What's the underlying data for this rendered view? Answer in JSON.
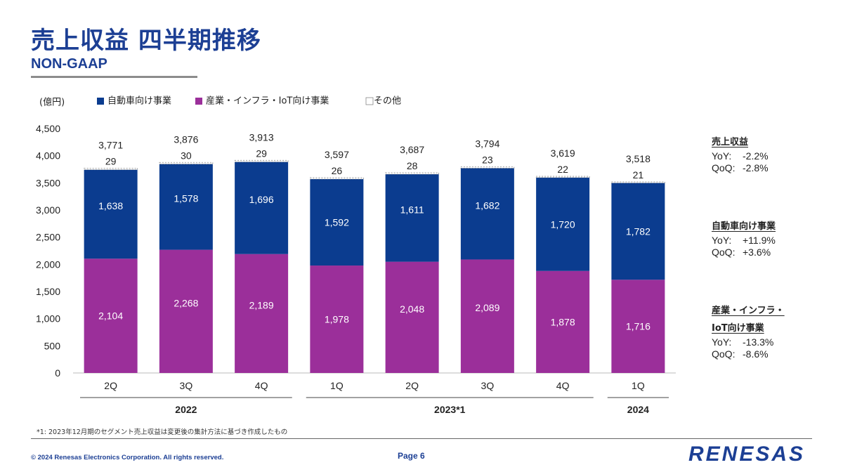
{
  "slide": {
    "title": "売上収益 四半期推移",
    "subtitle": "NON-GAAP",
    "footnote": "*1: 2023年12月期のセグメント売上収益は変更後の集計方法に基づき作成したもの",
    "copyright": "© 2024 Renesas Electronics Corporation. All rights reserved.",
    "page": "Page 6",
    "logo": "RENESAS"
  },
  "side": {
    "total": {
      "title": "売上収益",
      "yoy_key": "YoY:",
      "yoy": "-2.2%",
      "qoq_key": "QoQ:",
      "qoq": "-2.8%"
    },
    "auto": {
      "title": "自動車向け事業",
      "yoy_key": "YoY:",
      "yoy": "+11.9%",
      "qoq_key": "QoQ:",
      "qoq": "+3.6%"
    },
    "iiot": {
      "title_line1": "産業・インフラ・",
      "title_line2": "IoT向け事業",
      "yoy_key": "YoY:",
      "yoy": "-13.3%",
      "qoq_key": "QoQ:",
      "qoq": "-8.6%"
    }
  },
  "chart_data": {
    "type": "bar",
    "stacked": true,
    "unit_label": "(億円)",
    "categories": [
      "2Q",
      "3Q",
      "4Q",
      "1Q",
      "2Q",
      "3Q",
      "4Q",
      "1Q"
    ],
    "year_groups": [
      {
        "label": "2022",
        "count": 3
      },
      {
        "label": "2023*1",
        "count": 4
      },
      {
        "label": "2024",
        "count": 1
      }
    ],
    "series": [
      {
        "name": "産業・インフラ・IoT向け事業",
        "color": "#9b2f9a",
        "values": [
          2104,
          2268,
          2189,
          1978,
          2048,
          2089,
          1878,
          1716
        ]
      },
      {
        "name": "自動車向け事業",
        "color": "#0b3c8f",
        "values": [
          1638,
          1578,
          1696,
          1592,
          1611,
          1682,
          1720,
          1782
        ]
      },
      {
        "name": "その他",
        "color": "#ffffff",
        "values": [
          29,
          30,
          29,
          26,
          28,
          23,
          22,
          21
        ]
      }
    ],
    "legend_order": [
      1,
      0,
      2
    ],
    "totals": [
      3771,
      3876,
      3913,
      3597,
      3687,
      3794,
      3619,
      3518
    ],
    "ylim": [
      0,
      4500
    ],
    "yticks": [
      0,
      500,
      1000,
      1500,
      2000,
      2500,
      3000,
      3500,
      4000,
      4500
    ],
    "legend_position": "top",
    "grid": false
  }
}
